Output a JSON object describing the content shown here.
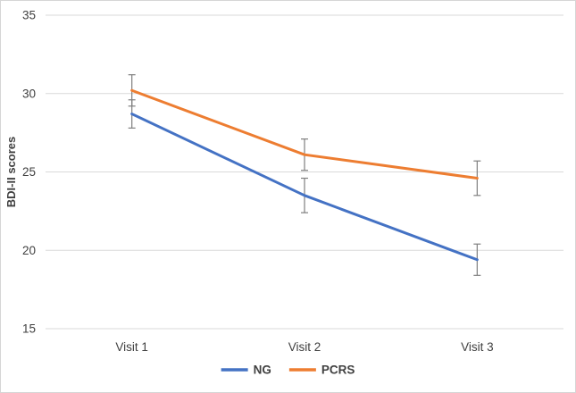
{
  "chart_data": {
    "type": "line",
    "title": "",
    "xlabel": "",
    "ylabel": "BDI-II scores",
    "categories": [
      "Visit 1",
      "Visit 2",
      "Visit 3"
    ],
    "series": [
      {
        "name": "NG",
        "values": [
          28.7,
          23.5,
          19.4
        ],
        "errors": [
          0.9,
          1.1,
          1.0
        ],
        "color": "#4472C4"
      },
      {
        "name": "PCRS",
        "values": [
          30.2,
          26.1,
          24.6
        ],
        "errors": [
          1.0,
          1.0,
          1.1
        ],
        "color": "#ED7D31"
      }
    ],
    "ylim": [
      15,
      35
    ],
    "yticks": [
      15,
      20,
      25,
      30,
      35
    ],
    "grid": true,
    "legend_position": "bottom",
    "colors": {
      "gridline": "#d9d9d9",
      "error_bar": "#7f7f7f",
      "tick_label": "#404040",
      "axis_title": "#404040"
    }
  }
}
